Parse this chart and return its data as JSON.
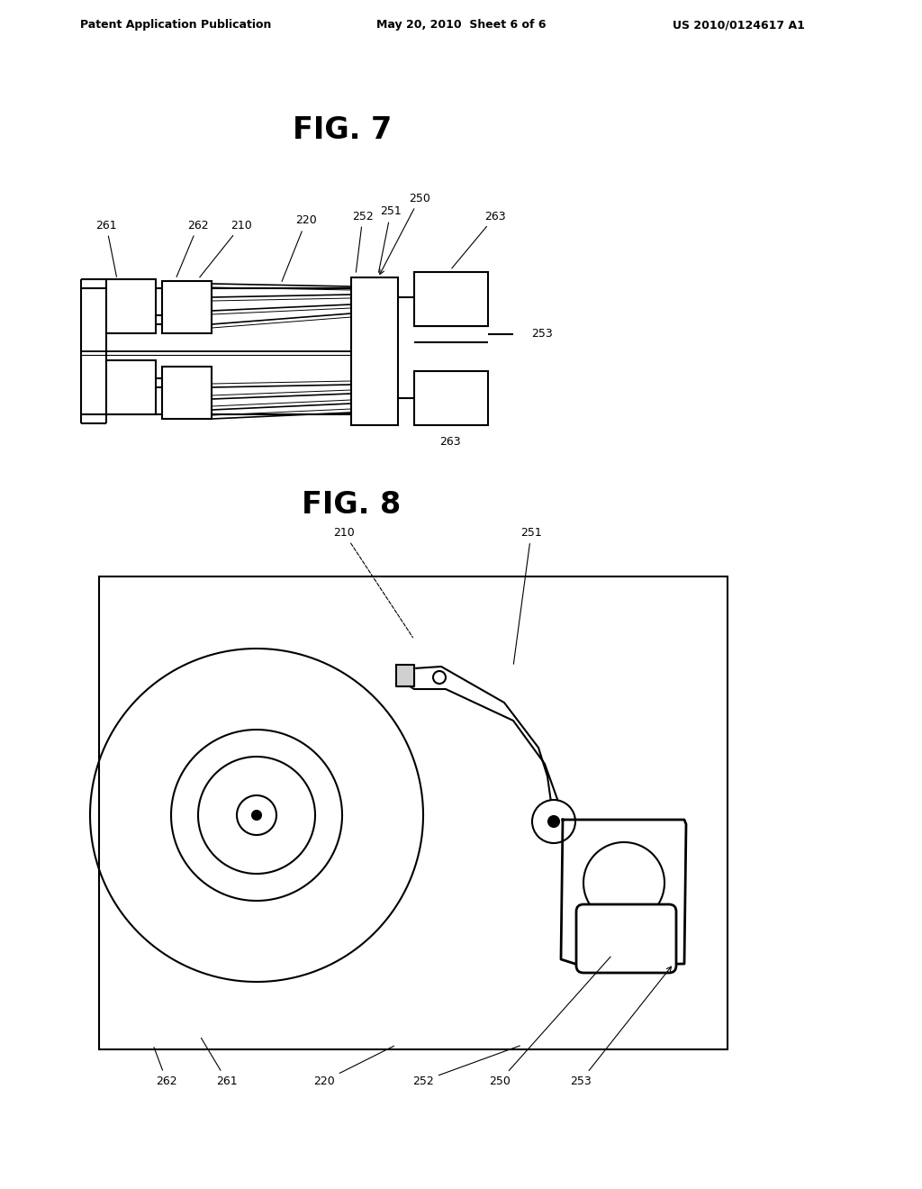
{
  "bg_color": "#ffffff",
  "header_left": "Patent Application Publication",
  "header_mid": "May 20, 2010  Sheet 6 of 6",
  "header_right": "US 2010/0124617 A1",
  "fig7_title": "FIG. 7",
  "fig8_title": "FIG. 8",
  "lc": "#000000",
  "lw": 1.5,
  "fs": 9,
  "title_fs": 24
}
